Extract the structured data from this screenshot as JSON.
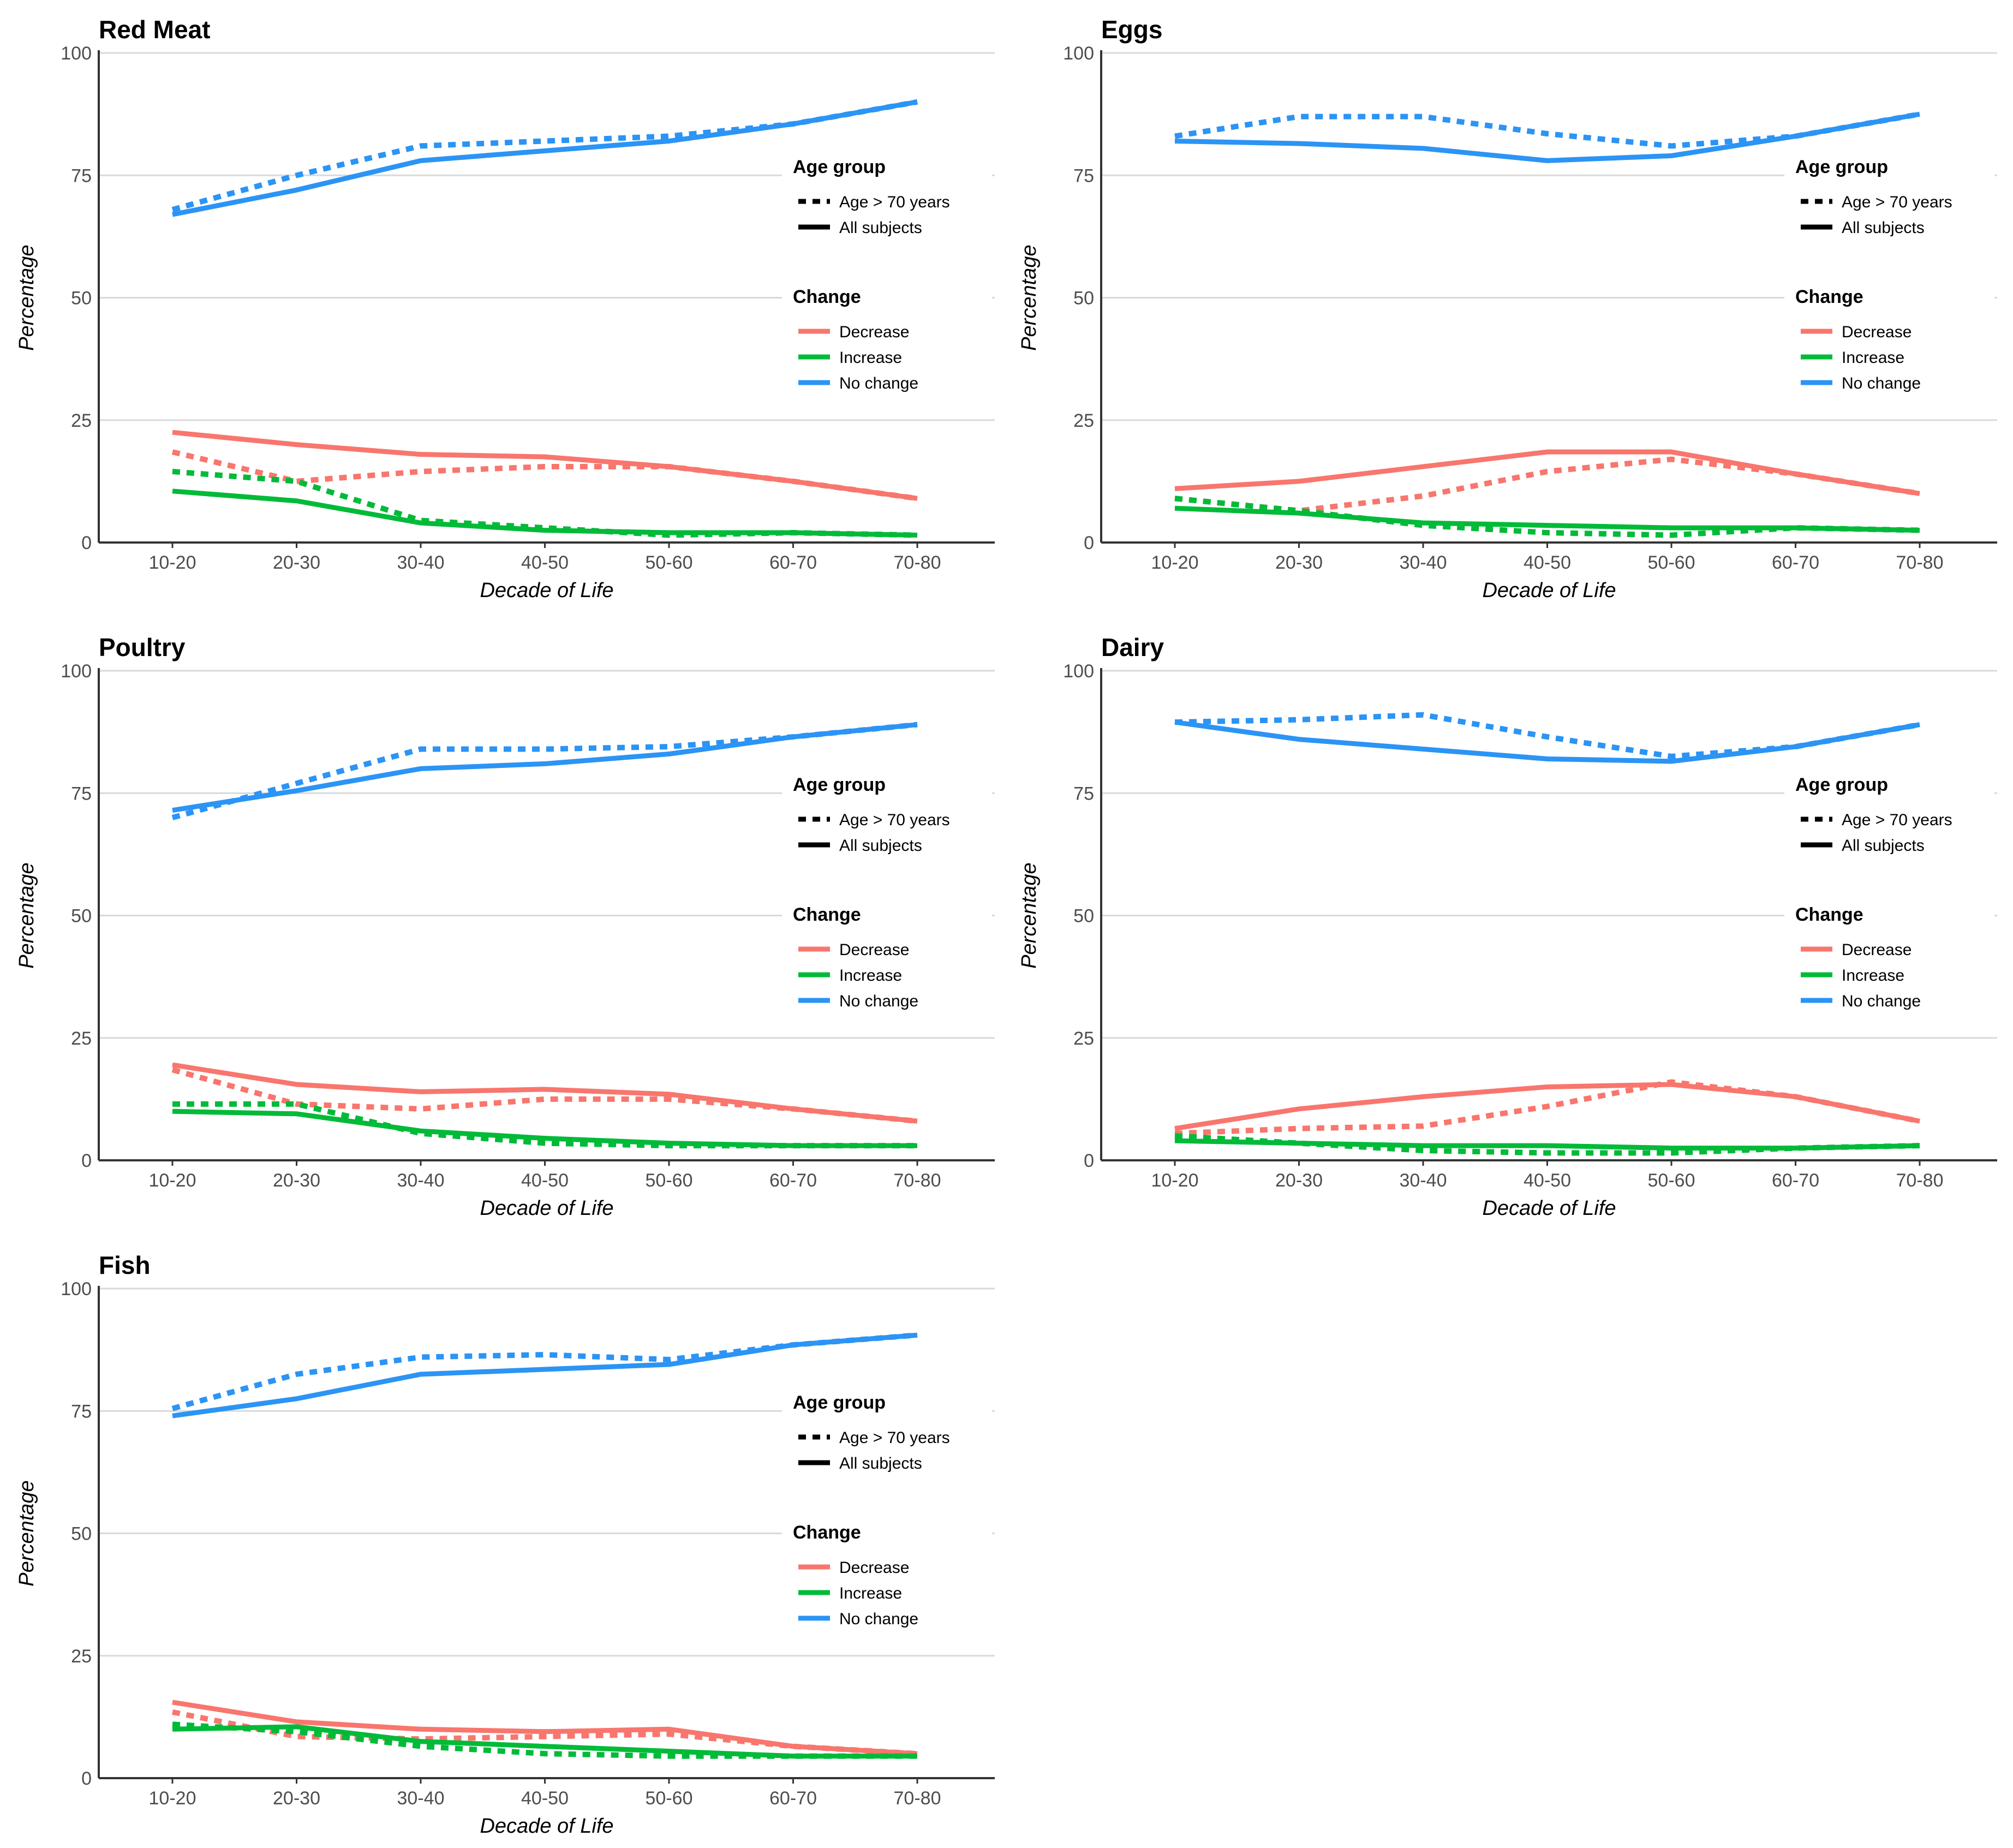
{
  "colors": {
    "Decrease": "#F8766D",
    "Increase": "#00BA38",
    "No change": "#2B94F5",
    "gridline": "#d9d9d9",
    "axis": "#333333"
  },
  "legend": {
    "age_group_title": "Age group",
    "age_group_items": [
      {
        "label": "Age > 70 years",
        "linetype": "dotted"
      },
      {
        "label": "All subjects",
        "linetype": "solid"
      }
    ],
    "change_title": "Change",
    "change_items": [
      "Decrease",
      "Increase",
      "No change"
    ]
  },
  "chart_data": [
    {
      "type": "line",
      "title": "Red Meat",
      "xlabel": "Decade of Life",
      "ylabel": "Percentage",
      "categories": [
        "10-20",
        "20-30",
        "30-40",
        "40-50",
        "50-60",
        "60-70",
        "70-80"
      ],
      "ylim": [
        0,
        100
      ],
      "yticks": [
        0,
        25,
        50,
        75,
        100
      ],
      "series": [
        {
          "change": "No change",
          "group": "All subjects",
          "values": [
            67,
            72,
            78,
            80,
            82,
            85.5,
            90
          ]
        },
        {
          "change": "No change",
          "group": "Age > 70 years",
          "values": [
            68,
            75,
            81,
            82,
            83,
            85.5,
            90
          ]
        },
        {
          "change": "Decrease",
          "group": "All subjects",
          "values": [
            22.5,
            20,
            18,
            17.5,
            15.5,
            12.5,
            9
          ]
        },
        {
          "change": "Decrease",
          "group": "Age > 70 years",
          "values": [
            18.5,
            12.5,
            14.5,
            15.5,
            15.5,
            12.5,
            9
          ]
        },
        {
          "change": "Increase",
          "group": "All subjects",
          "values": [
            10.5,
            8.5,
            4,
            2.5,
            2,
            2,
            1.5
          ]
        },
        {
          "change": "Increase",
          "group": "Age > 70 years",
          "values": [
            14.5,
            12.5,
            4.5,
            3,
            1.5,
            2,
            1.5
          ]
        }
      ]
    },
    {
      "type": "line",
      "title": "Eggs",
      "xlabel": "Decade of Life",
      "ylabel": "Percentage",
      "categories": [
        "10-20",
        "20-30",
        "30-40",
        "40-50",
        "50-60",
        "60-70",
        "70-80"
      ],
      "ylim": [
        0,
        100
      ],
      "yticks": [
        0,
        25,
        50,
        75,
        100
      ],
      "series": [
        {
          "change": "No change",
          "group": "All subjects",
          "values": [
            82,
            81.5,
            80.5,
            78,
            79,
            83,
            87.5
          ]
        },
        {
          "change": "No change",
          "group": "Age > 70 years",
          "values": [
            83,
            87,
            87,
            83.5,
            81,
            83,
            87.5
          ]
        },
        {
          "change": "Decrease",
          "group": "All subjects",
          "values": [
            11,
            12.5,
            15.5,
            18.5,
            18.5,
            14,
            10
          ]
        },
        {
          "change": "Decrease",
          "group": "Age > 70 years",
          "values": [
            9,
            6.5,
            9.5,
            14.5,
            17,
            14,
            10
          ]
        },
        {
          "change": "Increase",
          "group": "All subjects",
          "values": [
            7,
            6,
            4,
            3.5,
            3,
            3,
            2.5
          ]
        },
        {
          "change": "Increase",
          "group": "Age > 70 years",
          "values": [
            9,
            6.5,
            3.5,
            2,
            1.5,
            3,
            2.5
          ]
        }
      ]
    },
    {
      "type": "line",
      "title": "Poultry",
      "xlabel": "Decade of Life",
      "ylabel": "Percentage",
      "categories": [
        "10-20",
        "20-30",
        "30-40",
        "40-50",
        "50-60",
        "60-70",
        "70-80"
      ],
      "ylim": [
        0,
        100
      ],
      "yticks": [
        0,
        25,
        50,
        75,
        100
      ],
      "series": [
        {
          "change": "No change",
          "group": "All subjects",
          "values": [
            71.5,
            75.5,
            80,
            81,
            83,
            86.5,
            89
          ]
        },
        {
          "change": "No change",
          "group": "Age > 70 years",
          "values": [
            70,
            77,
            84,
            84,
            84.5,
            86.5,
            89
          ]
        },
        {
          "change": "Decrease",
          "group": "All subjects",
          "values": [
            19.5,
            15.5,
            14,
            14.5,
            13.5,
            10.5,
            8
          ]
        },
        {
          "change": "Decrease",
          "group": "Age > 70 years",
          "values": [
            18.5,
            11.5,
            10.5,
            12.5,
            12.5,
            10.5,
            8
          ]
        },
        {
          "change": "Increase",
          "group": "All subjects",
          "values": [
            10,
            9.5,
            6,
            4.5,
            3.5,
            3,
            3
          ]
        },
        {
          "change": "Increase",
          "group": "Age > 70 years",
          "values": [
            11.5,
            11.5,
            5.5,
            3.5,
            3,
            3,
            3
          ]
        }
      ]
    },
    {
      "type": "line",
      "title": "Dairy",
      "xlabel": "Decade of Life",
      "ylabel": "Percentage",
      "categories": [
        "10-20",
        "20-30",
        "30-40",
        "40-50",
        "50-60",
        "60-70",
        "70-80"
      ],
      "ylim": [
        0,
        100
      ],
      "yticks": [
        0,
        25,
        50,
        75,
        100
      ],
      "series": [
        {
          "change": "No change",
          "group": "All subjects",
          "values": [
            89.5,
            86,
            84,
            82,
            81.5,
            84.5,
            89
          ]
        },
        {
          "change": "No change",
          "group": "Age > 70 years",
          "values": [
            89.5,
            90,
            91,
            86.5,
            82.5,
            84.5,
            89
          ]
        },
        {
          "change": "Decrease",
          "group": "All subjects",
          "values": [
            6.5,
            10.5,
            13,
            15,
            15.5,
            13,
            8
          ]
        },
        {
          "change": "Decrease",
          "group": "Age > 70 years",
          "values": [
            5.5,
            6.5,
            7,
            11,
            16,
            13,
            8
          ]
        },
        {
          "change": "Increase",
          "group": "All subjects",
          "values": [
            4,
            3.5,
            3,
            3,
            2.5,
            2.5,
            3
          ]
        },
        {
          "change": "Increase",
          "group": "Age > 70 years",
          "values": [
            5,
            3.5,
            2,
            1.5,
            1.5,
            2.5,
            3
          ]
        }
      ]
    },
    {
      "type": "line",
      "title": "Fish",
      "xlabel": "Decade of Life",
      "ylabel": "Percentage",
      "categories": [
        "10-20",
        "20-30",
        "30-40",
        "40-50",
        "50-60",
        "60-70",
        "70-80"
      ],
      "ylim": [
        0,
        100
      ],
      "yticks": [
        0,
        25,
        50,
        75,
        100
      ],
      "series": [
        {
          "change": "No change",
          "group": "All subjects",
          "values": [
            74,
            77.5,
            82.5,
            83.5,
            84.5,
            88.5,
            90.5
          ]
        },
        {
          "change": "No change",
          "group": "Age > 70 years",
          "values": [
            75.5,
            82.5,
            86,
            86.5,
            85.5,
            88.5,
            90.5
          ]
        },
        {
          "change": "Decrease",
          "group": "All subjects",
          "values": [
            15.5,
            11.5,
            10,
            9.5,
            10,
            6.5,
            5
          ]
        },
        {
          "change": "Decrease",
          "group": "Age > 70 years",
          "values": [
            13.5,
            8.5,
            8,
            8.5,
            9,
            6.5,
            5
          ]
        },
        {
          "change": "Increase",
          "group": "All subjects",
          "values": [
            10,
            10.5,
            7.5,
            6.5,
            5.5,
            4.5,
            4.5
          ]
        },
        {
          "change": "Increase",
          "group": "Age > 70 years",
          "values": [
            11,
            9.5,
            6.5,
            5,
            4.5,
            4.5,
            4.5
          ]
        }
      ]
    }
  ]
}
